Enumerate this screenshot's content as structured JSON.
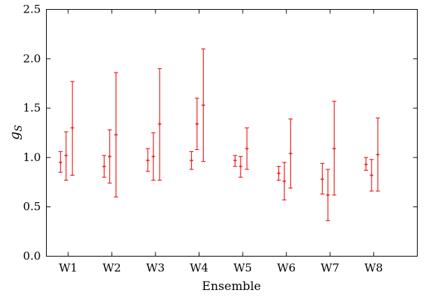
{
  "chart_data": {
    "type": "scatter",
    "xlabel": "Ensemble",
    "ylabel": "g",
    "ylabel_sub": "S",
    "ylim": [
      0.0,
      2.5
    ],
    "yticks": [
      "0.0",
      "0.5",
      "1.0",
      "1.5",
      "2.0",
      "2.5"
    ],
    "grid": false,
    "marker_color": "#ee1c1c",
    "categories": [
      "W1",
      "W2",
      "W3",
      "W4",
      "W5",
      "W6",
      "W7",
      "W8"
    ],
    "points": [
      {
        "cat": "W1",
        "y": 0.95,
        "lo": 0.85,
        "hi": 1.06
      },
      {
        "cat": "W1",
        "y": 1.02,
        "lo": 0.77,
        "hi": 1.26
      },
      {
        "cat": "W1",
        "y": 1.3,
        "lo": 0.82,
        "hi": 1.77
      },
      {
        "cat": "W2",
        "y": 0.91,
        "lo": 0.8,
        "hi": 1.02
      },
      {
        "cat": "W2",
        "y": 1.01,
        "lo": 0.74,
        "hi": 1.28
      },
      {
        "cat": "W2",
        "y": 1.23,
        "lo": 0.6,
        "hi": 1.86
      },
      {
        "cat": "W3",
        "y": 0.97,
        "lo": 0.86,
        "hi": 1.09
      },
      {
        "cat": "W3",
        "y": 1.01,
        "lo": 0.77,
        "hi": 1.25
      },
      {
        "cat": "W3",
        "y": 1.34,
        "lo": 0.77,
        "hi": 1.9
      },
      {
        "cat": "W4",
        "y": 0.97,
        "lo": 0.88,
        "hi": 1.06
      },
      {
        "cat": "W4",
        "y": 1.34,
        "lo": 1.08,
        "hi": 1.6
      },
      {
        "cat": "W4",
        "y": 1.53,
        "lo": 0.96,
        "hi": 2.1
      },
      {
        "cat": "W5",
        "y": 0.97,
        "lo": 0.91,
        "hi": 1.02
      },
      {
        "cat": "W5",
        "y": 0.91,
        "lo": 0.8,
        "hi": 1.01
      },
      {
        "cat": "W5",
        "y": 1.09,
        "lo": 0.88,
        "hi": 1.3
      },
      {
        "cat": "W6",
        "y": 0.84,
        "lo": 0.77,
        "hi": 0.91
      },
      {
        "cat": "W6",
        "y": 0.76,
        "lo": 0.57,
        "hi": 0.95
      },
      {
        "cat": "W6",
        "y": 1.04,
        "lo": 0.69,
        "hi": 1.39
      },
      {
        "cat": "W7",
        "y": 0.78,
        "lo": 0.63,
        "hi": 0.94
      },
      {
        "cat": "W7",
        "y": 0.62,
        "lo": 0.36,
        "hi": 0.88
      },
      {
        "cat": "W7",
        "y": 1.09,
        "lo": 0.62,
        "hi": 1.57
      },
      {
        "cat": "W8",
        "y": 0.93,
        "lo": 0.87,
        "hi": 1.0
      },
      {
        "cat": "W8",
        "y": 0.82,
        "lo": 0.66,
        "hi": 0.98
      },
      {
        "cat": "W8",
        "y": 1.03,
        "lo": 0.66,
        "hi": 1.4
      }
    ]
  }
}
